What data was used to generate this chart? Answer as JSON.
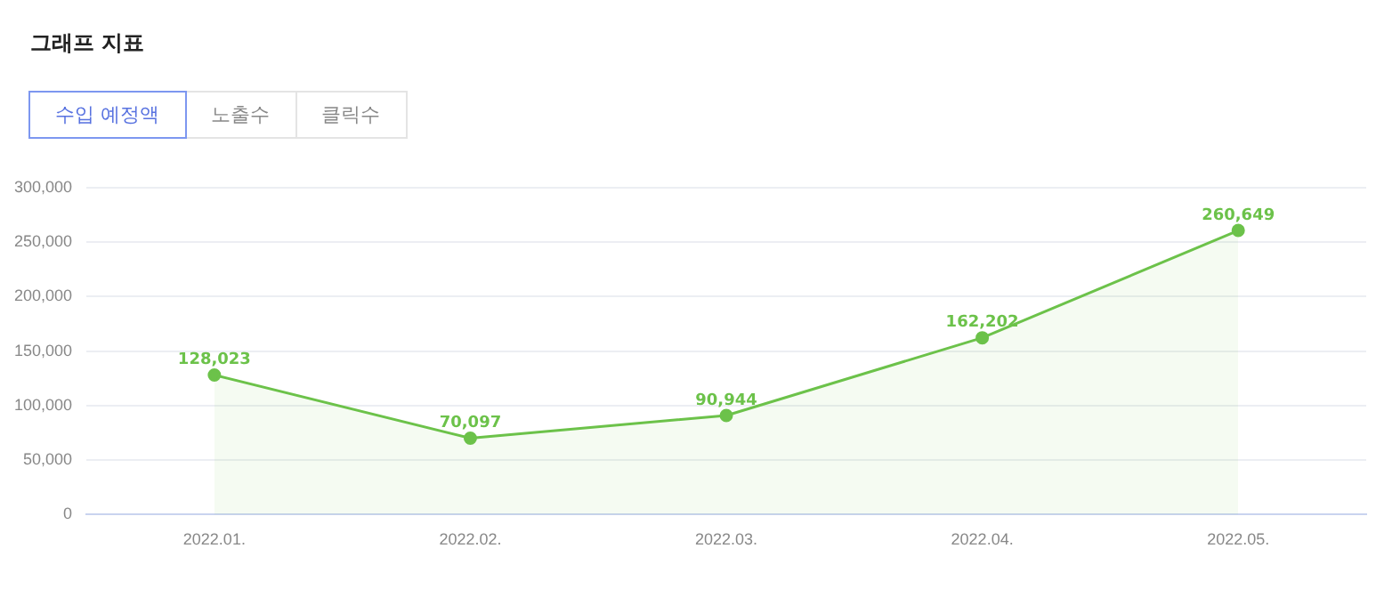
{
  "chart_data": {
    "type": "area",
    "title": "그래프 지표",
    "annotations": [
      "수입 예정액",
      "노출수",
      "클릭수"
    ],
    "categories": [
      "2022.01.",
      "2022.02.",
      "2022.03.",
      "2022.04.",
      "2022.05."
    ],
    "series": [
      {
        "color": "#6cc24a",
        "values": [
          128023,
          70097,
          90944,
          162202,
          260649
        ],
        "value_labels": [
          "128,023",
          "70,097",
          "90,944",
          "162,202",
          "260,649"
        ]
      }
    ],
    "ylim": [
      0,
      300000
    ],
    "yticks": [
      0,
      {
        "value": 50000,
        "label": "50,000"
      },
      {
        "value": 100000,
        "label": "100,000"
      },
      {
        "value": 150000,
        "label": "150,000"
      },
      {
        "value": 200000,
        "label": "200,000"
      },
      {
        "value": 250000,
        "label": "250,000"
      },
      {
        "value": 300000,
        "label": "300,000"
      }
    ],
    "grid": "y",
    "legend": false,
    "marker": "circle",
    "line_style": "solid"
  }
}
